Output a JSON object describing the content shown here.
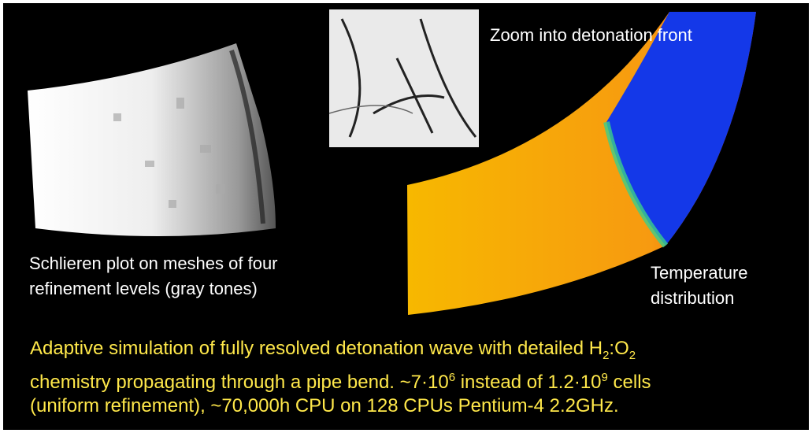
{
  "labels": {
    "zoom": "Zoom into detonation front",
    "schlieren": [
      "Schlieren plot on meshes of four",
      "refinement levels (gray tones)"
    ],
    "temperature": [
      "Temperature",
      "distribution"
    ]
  },
  "caption": {
    "lines": [
      [
        "Adaptive simulation of fully resolved detonation wave with detailed H",
        "2",
        ":O",
        "2"
      ],
      [
        "chemistry propagating through a pipe bend. ~7·10",
        "6",
        " instead of 1.2·10",
        "9",
        " cells"
      ],
      [
        "(uniform refinement), ~70,000h CPU on 128 CPUs Pentium-4 2.2GHz."
      ]
    ]
  }
}
